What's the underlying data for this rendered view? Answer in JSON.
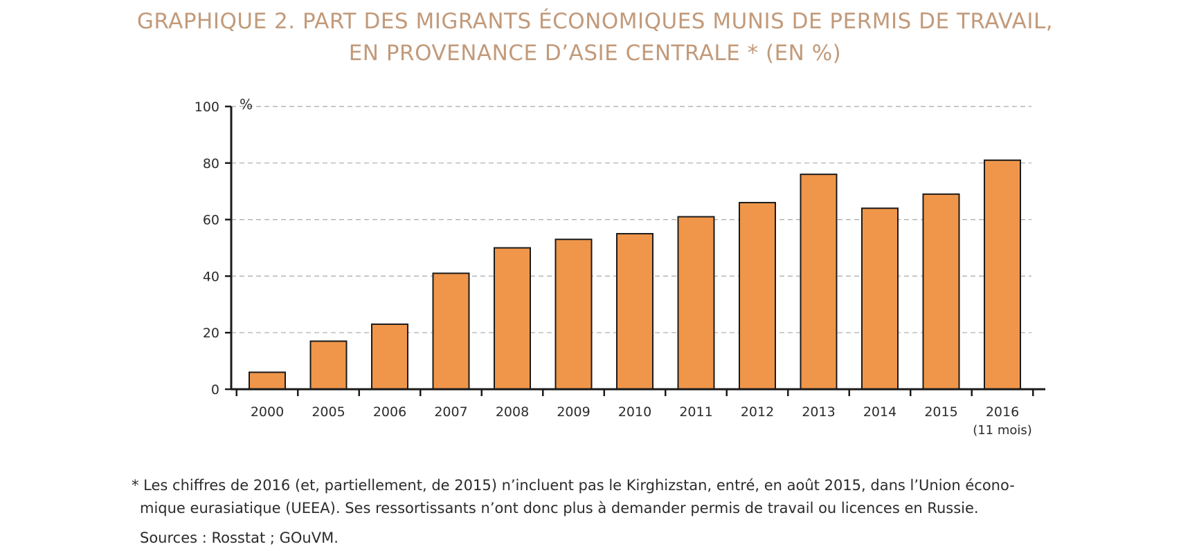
{
  "title_line1": "GRAPHIQUE 2. PART DES MIGRANTS ÉCONOMIQUES MUNIS DE PERMIS DE TRAVAIL,",
  "title_line2": "EN PROVENANCE D’ASIE CENTRALE * (EN %)",
  "footnote_line1": "* Les chiffres de 2016 (et, partiellement, de 2015) n’incluent pas le Kirghizstan, entré, en août 2015, dans l’Union écono-",
  "footnote_line2": "mique eurasiatique (UEEA). Ses ressortissants n’ont donc plus à demander permis de travail ou licences en Russie.",
  "sources": "Sources : Rosstat ; GOuVM.",
  "colors": {
    "title": "#c29a7a",
    "bar_fill": "#f0964a",
    "bar_stroke": "#1a1a1a",
    "axis": "#1a1a1a",
    "grid": "#a8a8a8",
    "text": "#2b2b2b"
  },
  "chart_data": {
    "type": "bar",
    "unit_label": "%",
    "categories": [
      "2000",
      "2005",
      "2006",
      "2007",
      "2008",
      "2009",
      "2010",
      "2011",
      "2012",
      "2013",
      "2014",
      "2015",
      "2016"
    ],
    "category_sublabels": [
      "",
      "",
      "",
      "",
      "",
      "",
      "",
      "",
      "",
      "",
      "",
      "",
      "(11 mois)"
    ],
    "values": [
      6,
      17,
      23,
      41,
      50,
      53,
      55,
      61,
      66,
      76,
      64,
      69,
      81
    ],
    "ylim": [
      0,
      100
    ],
    "yticks": [
      0,
      20,
      40,
      60,
      80,
      100
    ],
    "grid": true,
    "grid_style": "dashed"
  }
}
